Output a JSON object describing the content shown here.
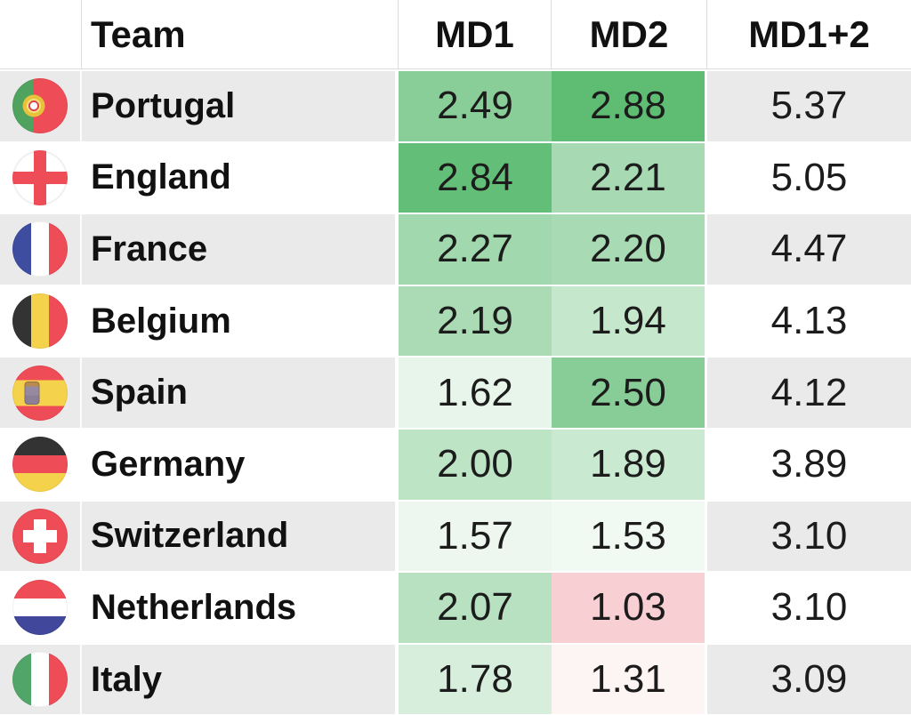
{
  "table": {
    "columns": [
      "Team",
      "MD1",
      "MD2",
      "MD1+2"
    ],
    "rows": [
      {
        "team": "Portugal",
        "flag": "portugal-flag",
        "md1": "2.49",
        "md2": "2.88",
        "total": "5.37",
        "row_bg": "#eaeaea",
        "md1_color": "#89ce98",
        "md2_color": "#5fbc73"
      },
      {
        "team": "England",
        "flag": "england-flag",
        "md1": "2.84",
        "md2": "2.21",
        "total": "5.05",
        "row_bg": "#ffffff",
        "md1_color": "#63be77",
        "md2_color": "#a7dab2"
      },
      {
        "team": "France",
        "flag": "france-flag",
        "md1": "2.27",
        "md2": "2.20",
        "total": "4.47",
        "row_bg": "#eaeaea",
        "md1_color": "#a1d8ad",
        "md2_color": "#a8dbb3"
      },
      {
        "team": "Belgium",
        "flag": "belgium-flag",
        "md1": "2.19",
        "md2": "1.94",
        "total": "4.13",
        "row_bg": "#ffffff",
        "md1_color": "#aadbb4",
        "md2_color": "#c5e7cc"
      },
      {
        "team": "Spain",
        "flag": "spain-flag",
        "md1": "1.62",
        "md2": "2.50",
        "total": "4.12",
        "row_bg": "#eaeaea",
        "md1_color": "#e7f5ea",
        "md2_color": "#88cd97"
      },
      {
        "team": "Germany",
        "flag": "germany-flag",
        "md1": "2.00",
        "md2": "1.89",
        "total": "3.89",
        "row_bg": "#ffffff",
        "md1_color": "#bee4c6",
        "md2_color": "#cae9d1"
      },
      {
        "team": "Switzerland",
        "flag": "switzerland-flag",
        "md1": "1.57",
        "md2": "1.53",
        "total": "3.10",
        "row_bg": "#eaeaea",
        "md1_color": "#edf7ef",
        "md2_color": "#f1f9f3"
      },
      {
        "team": "Netherlands",
        "flag": "netherlands-flag",
        "md1": "2.07",
        "md2": "1.03",
        "total": "3.10",
        "row_bg": "#ffffff",
        "md1_color": "#b7e1c0",
        "md2_color": "#f8d0d3"
      },
      {
        "team": "Italy",
        "flag": "italy-flag",
        "md1": "1.78",
        "md2": "1.31",
        "total": "3.09",
        "row_bg": "#eaeaea",
        "md1_color": "#d6eedb",
        "md2_color": "#fdf4f4"
      }
    ],
    "colors": {
      "stripe_gray": "#eaeaea",
      "heat_green_high": "#5fbc73",
      "heat_white_mid": "#ffffff",
      "heat_red_low": "#f8d0d3",
      "header_divider": "#dcdcdc",
      "text": "#1a1a1a"
    }
  },
  "chart_data": {
    "type": "table",
    "title": "",
    "columns": [
      "Team",
      "MD1",
      "MD2",
      "MD1+2"
    ],
    "categories": [
      "Portugal",
      "England",
      "France",
      "Belgium",
      "Spain",
      "Germany",
      "Switzerland",
      "Netherlands",
      "Italy"
    ],
    "series": [
      {
        "name": "MD1",
        "values": [
          2.49,
          2.84,
          2.27,
          2.19,
          1.62,
          2.0,
          1.57,
          2.07,
          1.78
        ]
      },
      {
        "name": "MD2",
        "values": [
          2.88,
          2.21,
          2.2,
          1.94,
          2.5,
          1.89,
          1.53,
          1.03,
          1.31
        ]
      },
      {
        "name": "MD1+2",
        "values": [
          5.37,
          5.05,
          4.47,
          4.13,
          4.12,
          3.89,
          3.1,
          3.1,
          3.09
        ]
      }
    ],
    "heatmap_columns": [
      "MD1",
      "MD2"
    ],
    "color_scale": {
      "low": "#f8696b",
      "mid": "#ffffff",
      "high": "#5fbc73"
    },
    "sort": "descending by MD1+2",
    "grid": false,
    "legend": "none"
  }
}
